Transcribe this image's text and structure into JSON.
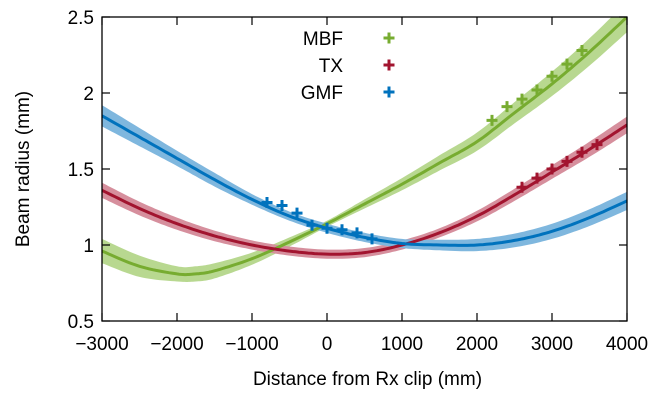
{
  "chart_data": {
    "type": "line",
    "xlabel": "Distance from Rx clip (mm)",
    "ylabel": "Beam radius (mm)",
    "xlim": [
      -3000,
      4000
    ],
    "ylim": [
      0.5,
      2.5
    ],
    "xticks": [
      -3000,
      -2000,
      -1000,
      0,
      1000,
      2000,
      3000,
      4000
    ],
    "xtick_labels": [
      "−3000",
      "−2000",
      "−1000",
      "0",
      "1000",
      "2000",
      "3000",
      "4000"
    ],
    "yticks": [
      0.5,
      1,
      1.5,
      2,
      2.5
    ],
    "ytick_labels": [
      "0.5",
      "1",
      "1.5",
      "2",
      "2.5"
    ],
    "grid": false,
    "legend_position": "top-center",
    "series": [
      {
        "name": "MBF",
        "color": "#77ac30",
        "band_color": "#b8d890",
        "curve": {
          "x": [
            -3000,
            -2500,
            -2000,
            -1750,
            -1500,
            -1000,
            -500,
            0,
            500,
            1000,
            1500,
            2000,
            2500,
            3000,
            3500,
            4000
          ],
          "y": [
            0.96,
            0.86,
            0.81,
            0.81,
            0.83,
            0.91,
            1.02,
            1.14,
            1.27,
            1.4,
            1.54,
            1.68,
            1.87,
            2.06,
            2.27,
            2.5
          ]
        },
        "band_halfwidth": [
          0.08,
          0.07,
          0.05,
          0.05,
          0.05,
          0.04,
          0.03,
          0.02,
          0.03,
          0.04,
          0.05,
          0.06,
          0.07,
          0.08,
          0.09,
          0.1
        ],
        "points": {
          "x": [
            2200,
            2400,
            2600,
            2800,
            3000,
            3200,
            3400
          ],
          "y": [
            1.82,
            1.91,
            1.96,
            2.02,
            2.11,
            2.19,
            2.28
          ]
        }
      },
      {
        "name": "TX",
        "color": "#a2142f",
        "band_color": "#d68f9d",
        "curve": {
          "x": [
            -3000,
            -2500,
            -2000,
            -1500,
            -1000,
            -500,
            0,
            500,
            1000,
            1500,
            2000,
            2500,
            3000,
            3500,
            4000
          ],
          "y": [
            1.36,
            1.24,
            1.14,
            1.06,
            1.0,
            0.96,
            0.94,
            0.95,
            1.0,
            1.08,
            1.19,
            1.33,
            1.48,
            1.63,
            1.79
          ]
        },
        "band_halfwidth": [
          0.05,
          0.045,
          0.04,
          0.035,
          0.03,
          0.03,
          0.03,
          0.03,
          0.03,
          0.03,
          0.035,
          0.04,
          0.045,
          0.05,
          0.055
        ],
        "points": {
          "x": [
            2600,
            2800,
            3000,
            3200,
            3400,
            3600
          ],
          "y": [
            1.38,
            1.44,
            1.5,
            1.55,
            1.61,
            1.66
          ]
        }
      },
      {
        "name": "GMF",
        "color": "#0072bd",
        "band_color": "#7fb7de",
        "curve": {
          "x": [
            -3000,
            -2500,
            -2000,
            -1500,
            -1000,
            -500,
            0,
            500,
            1000,
            1500,
            2000,
            2500,
            3000,
            3500,
            4000
          ],
          "y": [
            1.85,
            1.71,
            1.57,
            1.43,
            1.3,
            1.19,
            1.11,
            1.05,
            1.01,
            1.0,
            1.0,
            1.03,
            1.09,
            1.18,
            1.29
          ]
        },
        "band_halfwidth": [
          0.07,
          0.06,
          0.05,
          0.045,
          0.035,
          0.03,
          0.03,
          0.03,
          0.03,
          0.035,
          0.04,
          0.045,
          0.05,
          0.055,
          0.06
        ],
        "points": {
          "x": [
            -800,
            -600,
            -400,
            -200,
            0,
            200,
            400,
            600
          ],
          "y": [
            1.28,
            1.26,
            1.21,
            1.13,
            1.11,
            1.1,
            1.08,
            1.04
          ]
        }
      }
    ]
  }
}
